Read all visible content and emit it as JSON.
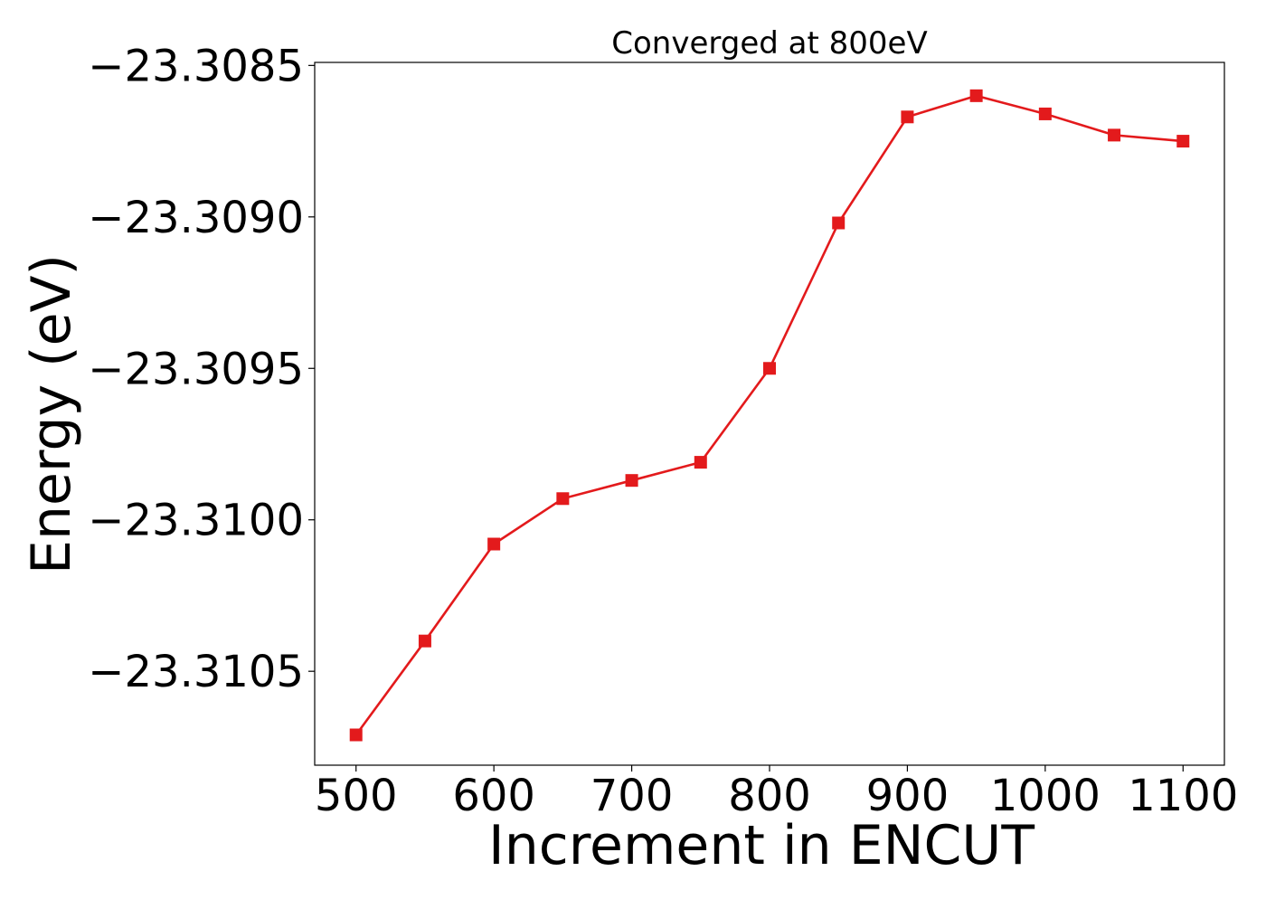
{
  "chart_data": {
    "type": "line",
    "title": "Converged at 800eV",
    "xlabel": "Increment in ENCUT",
    "ylabel": "Energy (eV)",
    "x": [
      500,
      550,
      600,
      650,
      700,
      750,
      800,
      850,
      900,
      950,
      1000,
      1050,
      1100
    ],
    "series": [
      {
        "values": [
          -23.31071,
          -23.3104,
          -23.31008,
          -23.30993,
          -23.30987,
          -23.30981,
          -23.3095,
          -23.30902,
          -23.30867,
          -23.3086,
          -23.30866,
          -23.30873,
          -23.30875
        ],
        "color": "#e31a1c",
        "marker": "square"
      }
    ],
    "xlim": [
      470,
      1130
    ],
    "ylim": [
      -23.31081,
      -23.30849
    ],
    "xticks": [
      500,
      600,
      700,
      800,
      900,
      1000,
      1100
    ],
    "xtick_labels": [
      "500",
      "600",
      "700",
      "800",
      "900",
      "1000",
      "1100"
    ],
    "yticks": [
      -23.3085,
      -23.309,
      -23.3095,
      -23.31,
      -23.3105
    ],
    "ytick_labels": [
      "−23.3085",
      "−23.3090",
      "−23.3095",
      "−23.3100",
      "−23.3105"
    ],
    "grid": false,
    "legend": "none"
  }
}
